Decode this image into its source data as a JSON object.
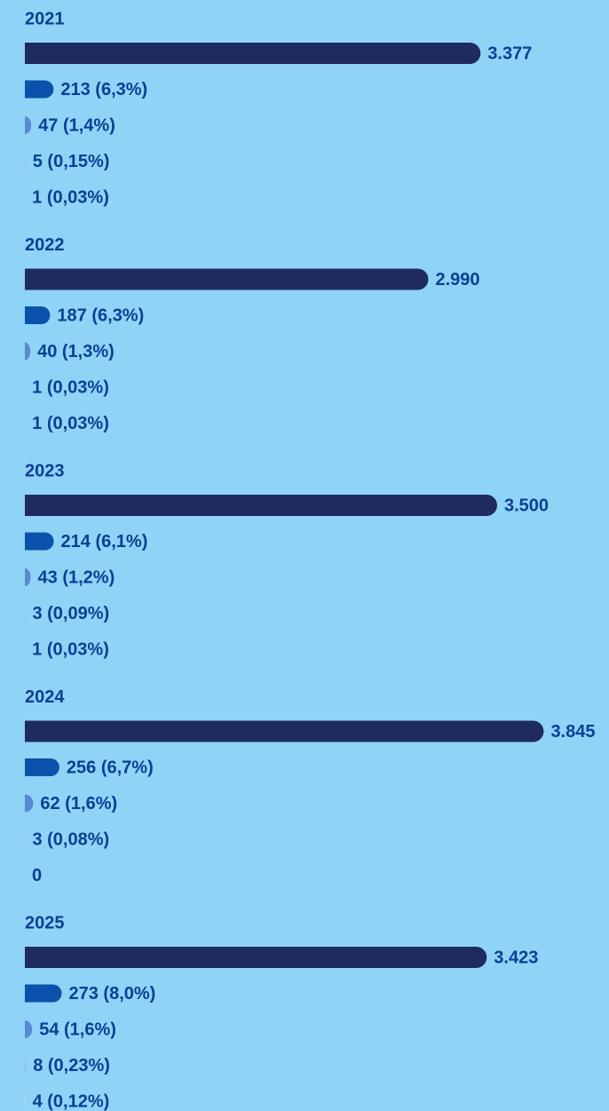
{
  "chart_data": [
    {
      "type": "bar",
      "title": "2021",
      "values": [
        3377,
        213,
        47,
        5,
        1
      ],
      "value_labels": [
        "3.377",
        "213 (6,3%)",
        "47 (1,4%)",
        "5 (0,15%)",
        "1 (0,03%)"
      ],
      "colors": [
        "#1f2a5e",
        "#0b52ad",
        "#5a88d2",
        "#a3b6e3",
        "#cdd8f2"
      ],
      "xlim": [
        0,
        4000
      ]
    },
    {
      "type": "bar",
      "title": "2022",
      "values": [
        2990,
        187,
        40,
        1,
        1
      ],
      "value_labels": [
        "2.990",
        "187 (6,3%)",
        "40 (1,3%)",
        "1 (0,03%)",
        "1 (0,03%)"
      ],
      "colors": [
        "#1f2a5e",
        "#0b52ad",
        "#5a88d2",
        "#a3b6e3",
        "#cdd8f2"
      ],
      "xlim": [
        0,
        4000
      ]
    },
    {
      "type": "bar",
      "title": "2023",
      "values": [
        3500,
        214,
        43,
        3,
        1
      ],
      "value_labels": [
        "3.500",
        "214 (6,1%)",
        "43 (1,2%)",
        "3 (0,09%)",
        "1 (0,03%)"
      ],
      "colors": [
        "#1f2a5e",
        "#0b52ad",
        "#5a88d2",
        "#a3b6e3",
        "#cdd8f2"
      ],
      "xlim": [
        0,
        4000
      ]
    },
    {
      "type": "bar",
      "title": "2024",
      "values": [
        3845,
        256,
        62,
        3,
        0
      ],
      "value_labels": [
        "3.845",
        "256 (6,7%)",
        "62 (1,6%)",
        "3 (0,08%)",
        "0"
      ],
      "colors": [
        "#1f2a5e",
        "#0b52ad",
        "#5a88d2",
        "#a3b6e3",
        "#cdd8f2"
      ],
      "xlim": [
        0,
        4000
      ]
    },
    {
      "type": "bar",
      "title": "2025",
      "values": [
        3423,
        273,
        54,
        8,
        4
      ],
      "value_labels": [
        "3.423",
        "273 (8,0%)",
        "54 (1,6%)",
        "8 (0,23%)",
        "4 (0,12%)"
      ],
      "colors": [
        "#1f2a5e",
        "#0b52ad",
        "#5a88d2",
        "#a3b6e3",
        "#cdd8f2"
      ],
      "xlim": [
        0,
        4000
      ]
    }
  ]
}
